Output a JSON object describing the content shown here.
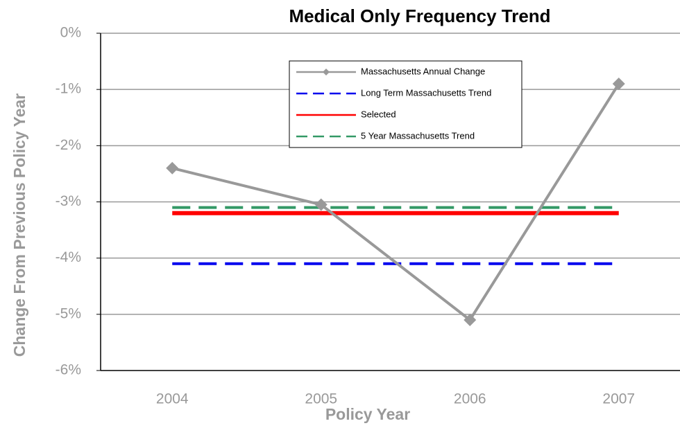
{
  "chart_data": {
    "type": "line",
    "title": "Medical Only Frequency Trend",
    "x_label": "Policy Year",
    "y_label": "Change From Previous Policy Year",
    "categories": [
      "2004",
      "2005",
      "2006",
      "2007"
    ],
    "series": [
      {
        "name": "Massachusetts Annual Change",
        "color": "#999999",
        "style": "solid",
        "marker": "diamond",
        "values": [
          -2.4,
          -3.05,
          -5.1,
          -0.9
        ]
      },
      {
        "name": "Long Term Massachusetts Trend",
        "color": "#0000ee",
        "style": "dashed",
        "values": [
          -4.1,
          -4.1,
          -4.1,
          -4.1
        ]
      },
      {
        "name": "Selected",
        "color": "#ff0000",
        "style": "solid",
        "values": [
          -3.2,
          -3.2,
          -3.2,
          -3.2
        ]
      },
      {
        "name": "5 Year Massachusetts Trend",
        "color": "#339966",
        "style": "dashed",
        "values": [
          -3.1,
          -3.1,
          -3.1,
          -3.1
        ]
      }
    ],
    "ylim": [
      -6,
      0
    ],
    "yticks": [
      {
        "value": -6,
        "label": "-6%"
      },
      {
        "value": -5,
        "label": "-5%"
      },
      {
        "value": -4,
        "label": "-4%"
      },
      {
        "value": -3,
        "label": "-3%"
      },
      {
        "value": -2,
        "label": "-2%"
      },
      {
        "value": -1,
        "label": "-1%"
      },
      {
        "value": 0,
        "label": "0%"
      }
    ],
    "grid": true
  }
}
